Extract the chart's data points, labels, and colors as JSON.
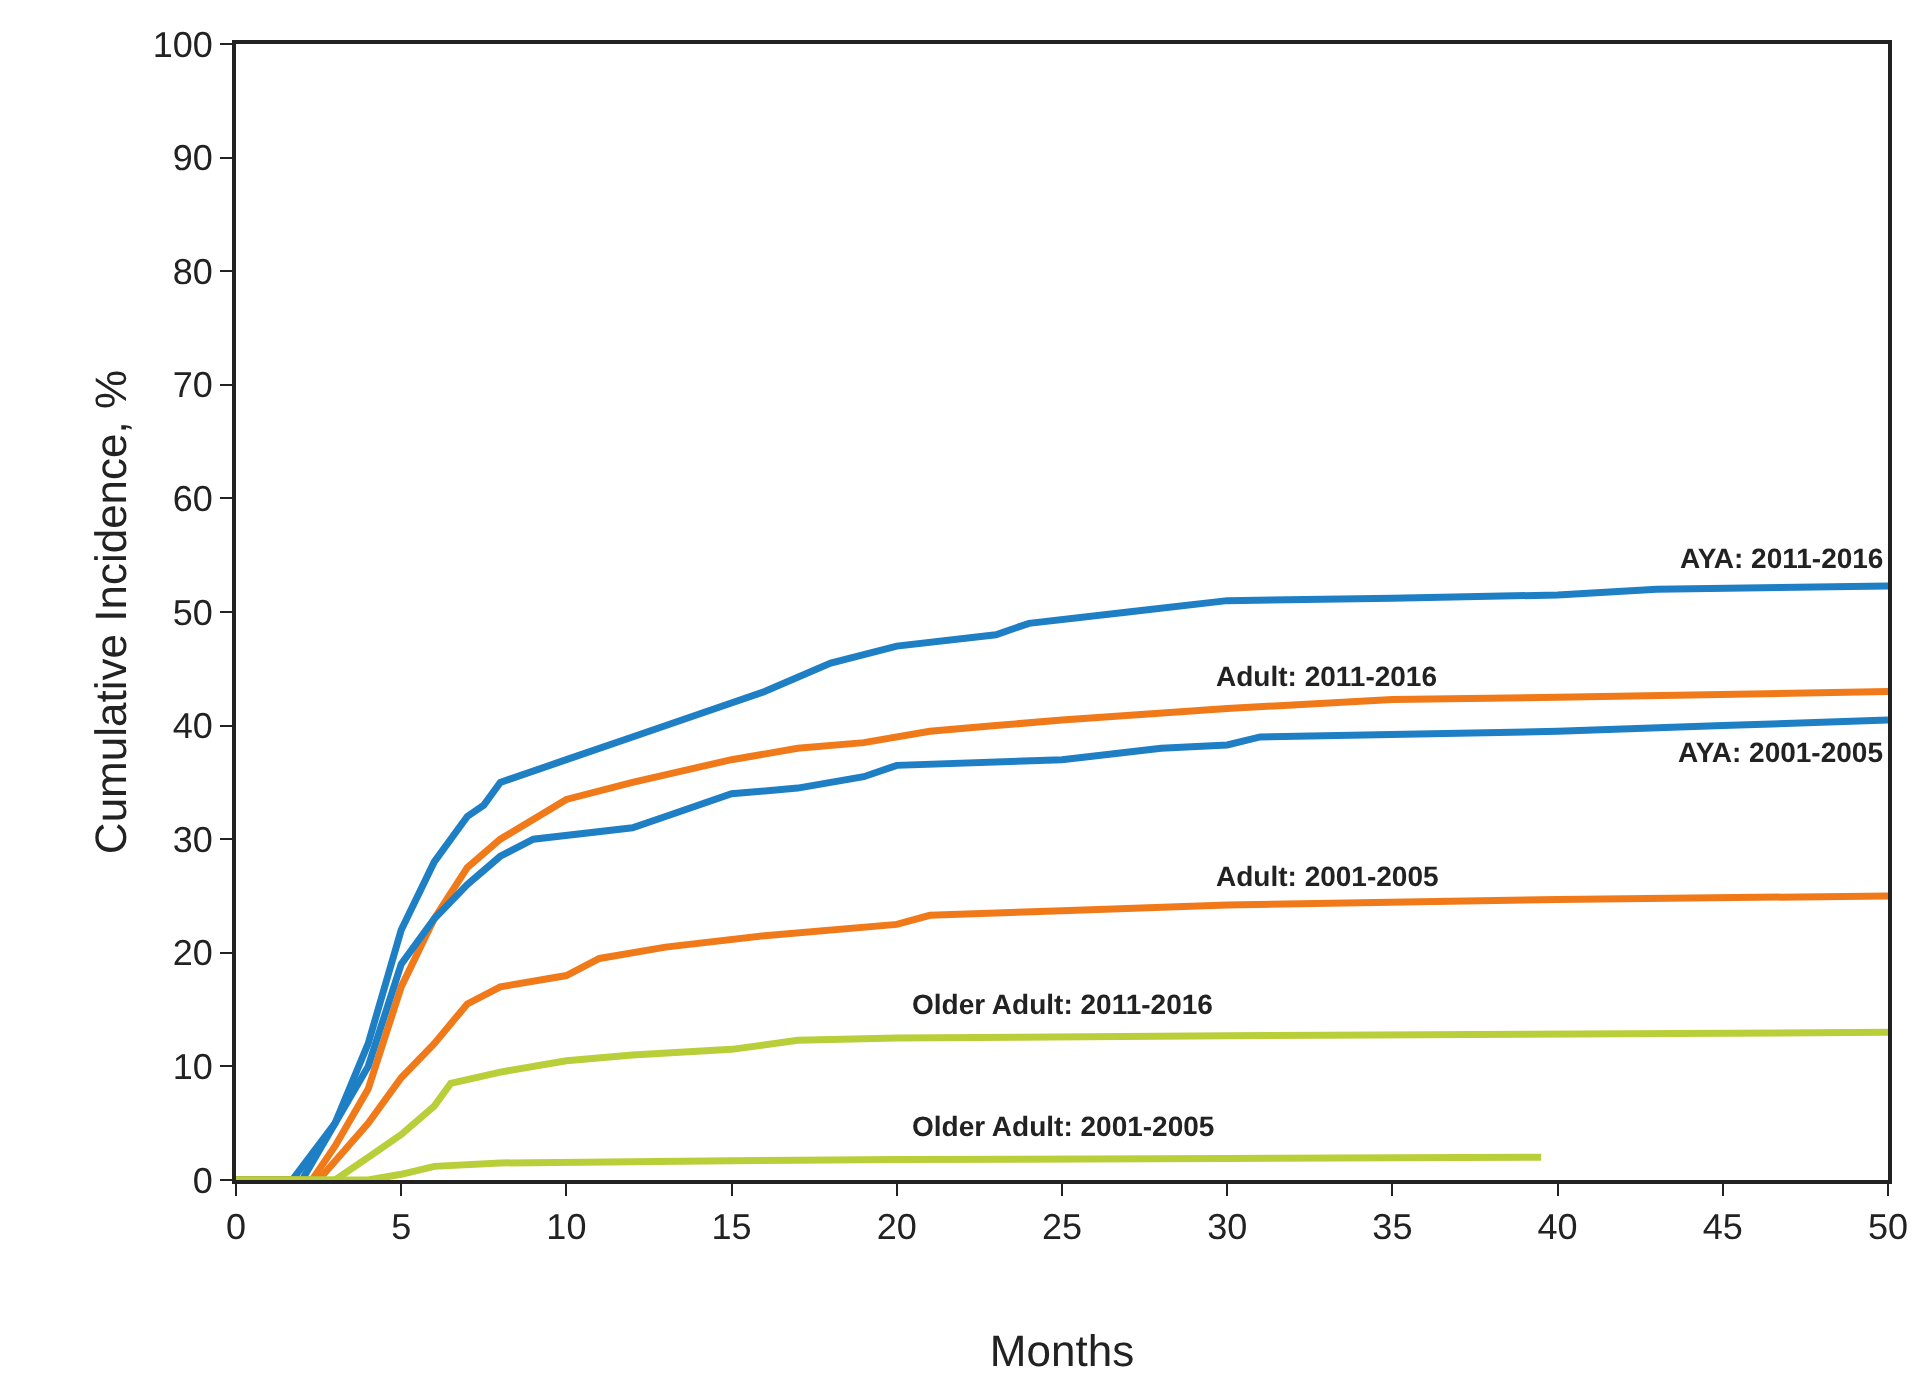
{
  "chart_data": {
    "type": "line",
    "xlabel": "Months",
    "ylabel": "Cumulative Incidence, %",
    "xlim": [
      0,
      50
    ],
    "xticks": [
      0,
      5,
      10,
      15,
      20,
      25,
      30,
      35,
      40,
      45,
      50
    ],
    "ylim": [
      0,
      100
    ],
    "yticks": [
      0,
      10,
      20,
      30,
      40,
      50,
      60,
      70,
      80,
      90,
      100
    ],
    "grid": false,
    "legend": false,
    "marker": "none",
    "line_style": "solid",
    "series": [
      {
        "name": "AYA: 2011-2016",
        "color": "#1f7fc4",
        "x": [
          0,
          1.7,
          3,
          4,
          5,
          6,
          7,
          7.5,
          8,
          10,
          12,
          14,
          16,
          18,
          20,
          23,
          24,
          27,
          30,
          35,
          40,
          43,
          50
        ],
        "values": [
          0,
          0,
          5,
          12,
          22,
          28,
          32,
          33,
          35,
          37,
          39,
          41,
          43,
          45.5,
          47,
          48,
          49,
          50,
          51,
          51.2,
          51.5,
          52,
          52.3
        ]
      },
      {
        "name": "Adult: 2011-2016",
        "color": "#f07a1a",
        "x": [
          0,
          2.3,
          3,
          4,
          5,
          6,
          7,
          8,
          10,
          12,
          15,
          17,
          19,
          21,
          23,
          25,
          30,
          35,
          40,
          50
        ],
        "values": [
          0,
          0,
          3,
          8,
          17,
          23,
          27.5,
          30,
          33.5,
          35,
          37,
          38,
          38.5,
          39.5,
          40,
          40.5,
          41.5,
          42.3,
          42.5,
          43
        ]
      },
      {
        "name": "AYA: 2001-2005",
        "color": "#1f7fc4",
        "x": [
          0,
          2,
          4,
          5,
          6,
          7,
          8,
          9,
          12,
          13,
          15,
          17,
          19,
          20,
          25,
          28,
          30,
          31,
          40,
          45,
          50
        ],
        "values": [
          0,
          0,
          10,
          19,
          23,
          26,
          28.5,
          30,
          31,
          32,
          34,
          34.5,
          35.5,
          36.5,
          37,
          38,
          38.3,
          39,
          39.5,
          40,
          40.5
        ]
      },
      {
        "name": "Adult: 2001-2005",
        "color": "#f07a1a",
        "x": [
          0,
          2.5,
          4,
          5,
          6,
          7,
          8,
          10,
          11,
          13,
          16,
          20,
          21,
          25,
          30,
          40,
          50
        ],
        "values": [
          0,
          0,
          5,
          9,
          12,
          15.5,
          17,
          18,
          19.5,
          20.5,
          21.5,
          22.5,
          23.3,
          23.7,
          24.2,
          24.7,
          25
        ]
      },
      {
        "name": "Older Adult: 2011-2016",
        "color": "#b8cf3a",
        "x": [
          0,
          3,
          4,
          5,
          6,
          6.5,
          8,
          10,
          12,
          15,
          17,
          20,
          30,
          50
        ],
        "values": [
          0,
          0,
          2,
          4,
          6.5,
          8.5,
          9.5,
          10.5,
          11,
          11.5,
          12.3,
          12.5,
          12.7,
          13
        ]
      },
      {
        "name": "Older Adult: 2001-2005",
        "color": "#b8cf3a",
        "x": [
          0,
          4,
          5,
          6,
          8,
          15,
          20,
          30,
          39.5
        ],
        "values": [
          0,
          0,
          0.5,
          1.2,
          1.5,
          1.7,
          1.8,
          1.9,
          2
        ]
      }
    ]
  }
}
